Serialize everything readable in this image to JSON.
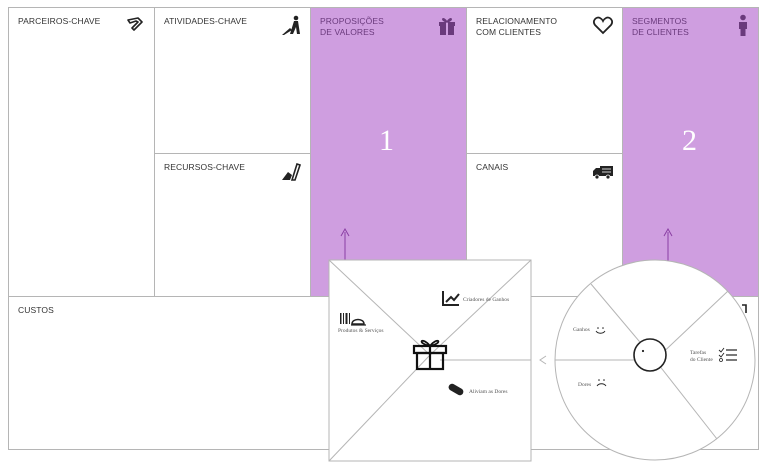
{
  "canvas": {
    "partners": {
      "title": "PARCEIROS-CHAVE",
      "icon": "chain-link-icon"
    },
    "activities": {
      "title": "ATIVIDADES-CHAVE",
      "icon": "worker-digging-icon"
    },
    "resources": {
      "title": "RECURSOS-CHAVE",
      "icon": "resource-tools-icon"
    },
    "value_propositions": {
      "title": "PROPOSIÇÕES\nDE VALORES",
      "icon": "gift-icon",
      "number": "1"
    },
    "relationships": {
      "title": "RELACIONAMENTO\nCOM CLIENTES",
      "icon": "heart-icon"
    },
    "channels": {
      "title": "CANAIS",
      "icon": "delivery-truck-icon"
    },
    "segments": {
      "title": "SEGMENTOS\nDE CLIENTES",
      "icon": "person-icon",
      "number": "2"
    },
    "costs": {
      "title": "CUSTOS"
    }
  },
  "value_map": {
    "products": "Produtos & Serviços",
    "gain_creators": "Criadores de Ganhos",
    "pain_relievers": "Aliviam as Dores"
  },
  "customer_profile": {
    "gains": "Ganhos",
    "pains": "Dores",
    "jobs_line1": "Tarefas",
    "jobs_line2": "do Cliente"
  },
  "colors": {
    "highlight": "#cf9ee0",
    "accent": "#9b3db0",
    "border": "#b5b5b5"
  }
}
